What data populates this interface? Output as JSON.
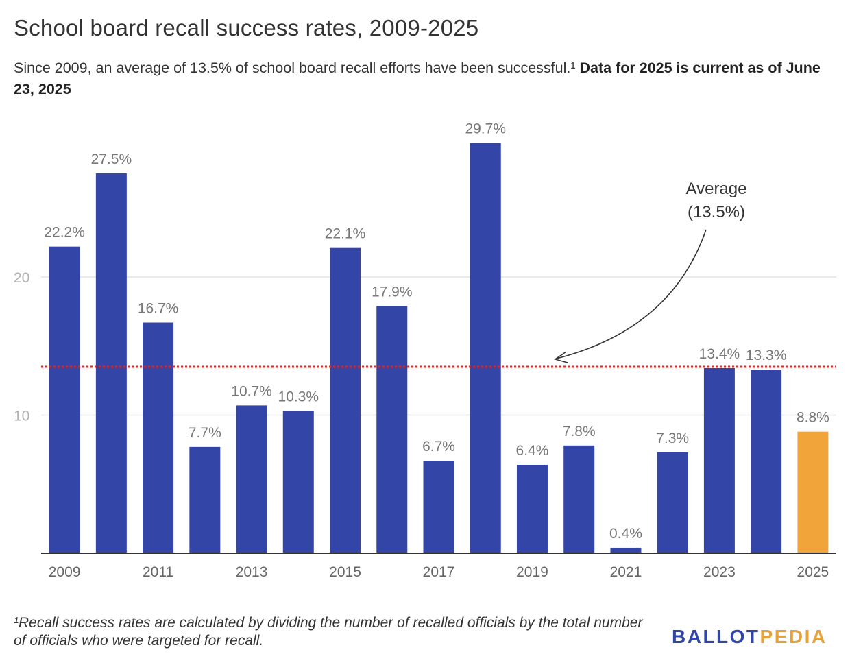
{
  "title": "School board recall success rates, 2009-2025",
  "subtitle_plain": "Since 2009, an average of 13.5% of school board recall efforts have been successful.¹",
  "subtitle_bold": "Data for 2025 is current as of June 23, 2025",
  "footnote": "¹Recall success rates are calculated by dividing the number of recalled officials by the total number of officials who were targeted for recall.",
  "logo": {
    "part1": "BALLOT",
    "part2": "PEDIA"
  },
  "colors": {
    "bar": "#3346a8",
    "highlight": "#f0a43a",
    "average_line": "#d22a2a",
    "grid": "#e3e3e3",
    "tick": "#b0b0b0"
  },
  "chart_data": {
    "type": "bar",
    "categories": [
      "2009",
      "2010",
      "2011",
      "2012",
      "2013",
      "2014",
      "2015",
      "2016",
      "2017",
      "2018",
      "2019",
      "2020",
      "2021",
      "2022",
      "2023",
      "2024",
      "2025"
    ],
    "values": [
      22.2,
      27.5,
      16.7,
      7.7,
      10.7,
      10.3,
      22.1,
      17.9,
      6.7,
      29.7,
      6.4,
      7.8,
      0.4,
      7.3,
      13.4,
      13.3,
      8.8
    ],
    "value_labels": [
      "22.2%",
      "27.5%",
      "16.7%",
      "7.7%",
      "10.7%",
      "10.3%",
      "22.1%",
      "17.9%",
      "6.7%",
      "29.7%",
      "6.4%",
      "7.8%",
      "0.4%",
      "7.3%",
      "13.4%",
      "13.3%",
      "8.8%"
    ],
    "x_tick_labels": [
      "2009",
      "2011",
      "2013",
      "2015",
      "2017",
      "2019",
      "2021",
      "2023",
      "2025"
    ],
    "y_ticks": [
      10,
      20
    ],
    "ylim": [
      0,
      30
    ],
    "highlighted_category": "2025",
    "average": 13.5,
    "average_annotation": [
      "Average",
      "(13.5%)"
    ],
    "grid": true
  }
}
